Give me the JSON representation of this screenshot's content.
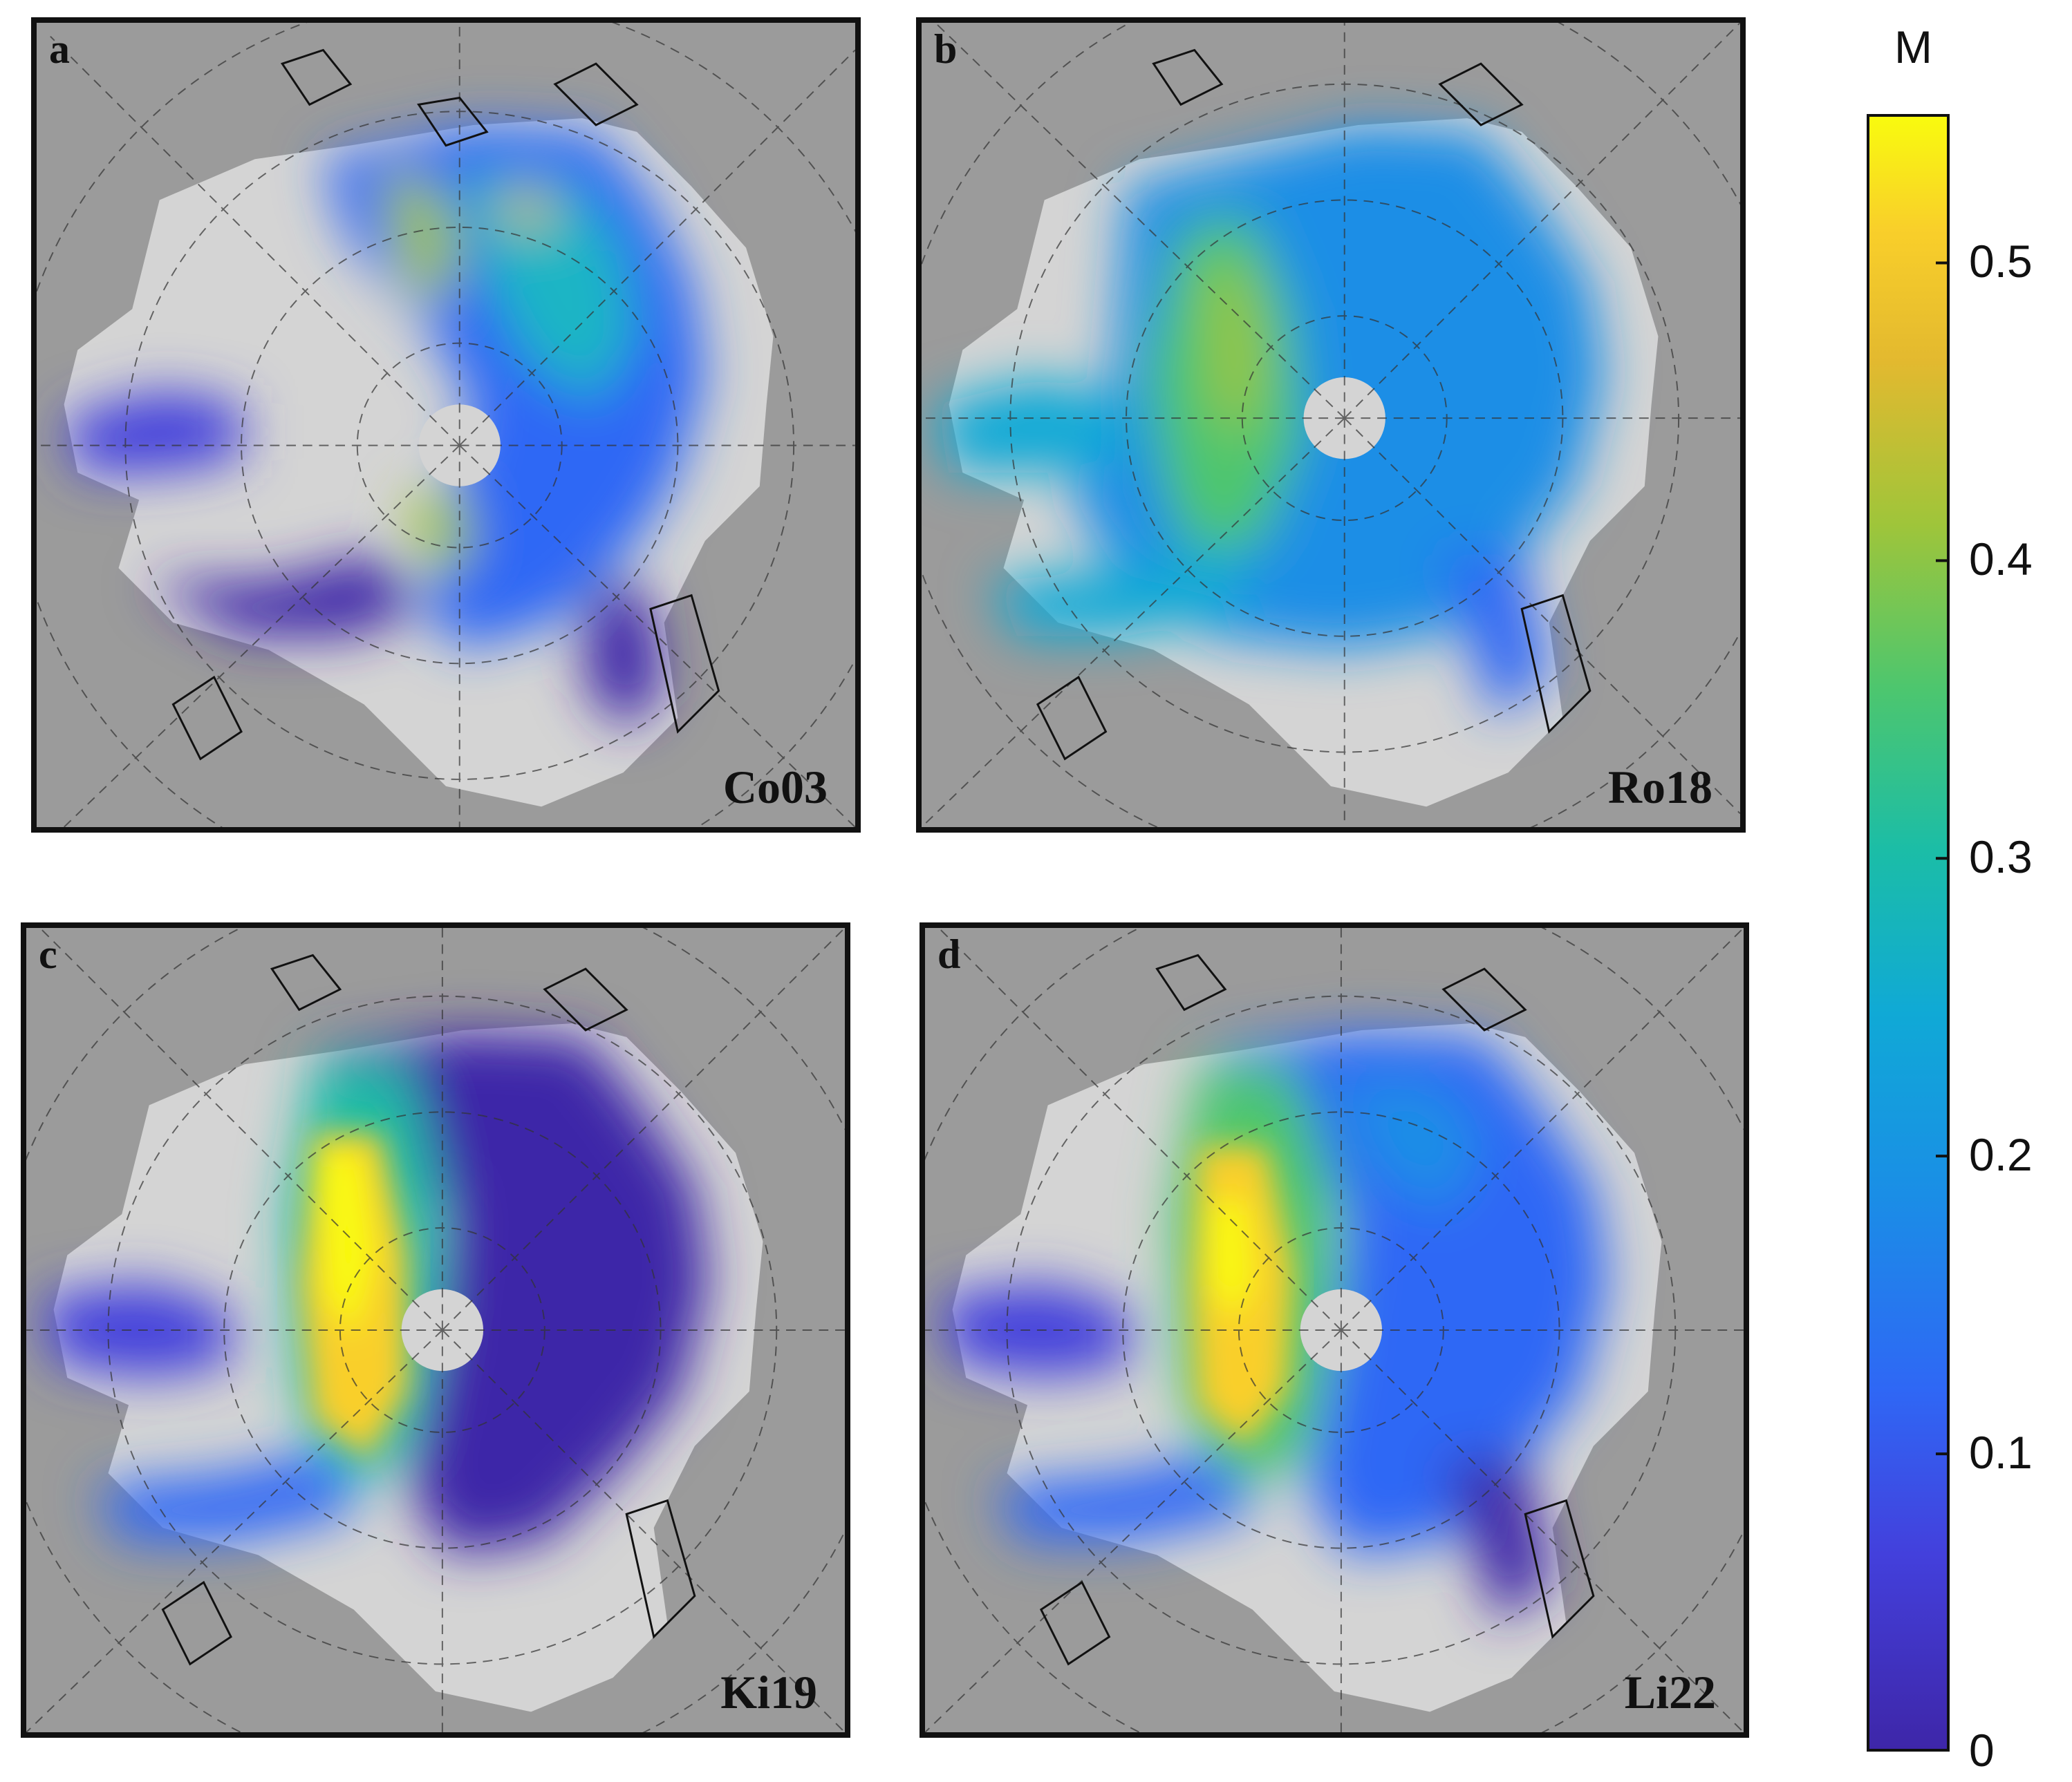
{
  "figure": {
    "panels": [
      {
        "id": "a",
        "letter": "a",
        "model": "Co03"
      },
      {
        "id": "b",
        "letter": "b",
        "model": "Ro18"
      },
      {
        "id": "c",
        "letter": "c",
        "model": "Ki19"
      },
      {
        "id": "d",
        "letter": "d",
        "model": "Li22"
      }
    ],
    "colorbar": {
      "title": "M",
      "ticks": [
        "0",
        "0.1",
        "0.2",
        "0.3",
        "0.4",
        "0.5"
      ],
      "tick_values": [
        0,
        0.1,
        0.2,
        0.3,
        0.4,
        0.5
      ],
      "range": [
        0,
        0.55
      ],
      "colormap": "parula"
    },
    "colors": {
      "land": "#9b9b9b",
      "no_ice": "#d4d4d4",
      "low": "#3b2fb0",
      "mid_low": "#2f6ef0",
      "mid": "#1fb5c5",
      "mid_high": "#6cc94a",
      "high": "#f5d71e",
      "max": "#f9fb0e"
    }
  }
}
